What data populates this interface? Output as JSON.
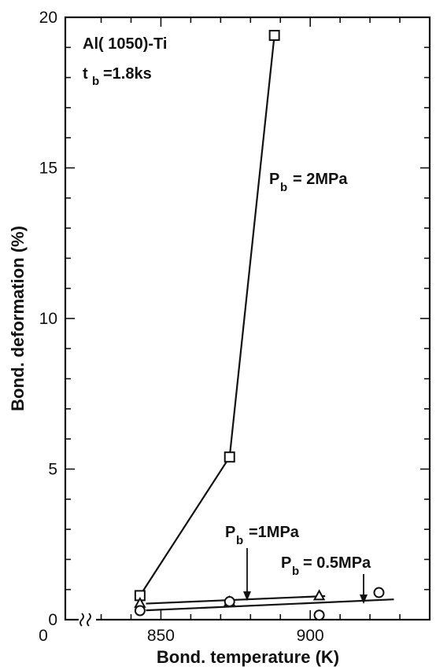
{
  "chart_data": {
    "type": "line",
    "xlabel": "Bond. temperature (K)",
    "ylabel": "Bond. deformation (%)",
    "xlim": [
      818,
      940
    ],
    "ylim": [
      0,
      20
    ],
    "x_ticks": [
      850,
      900
    ],
    "y_ticks": [
      0,
      5,
      10,
      15,
      20
    ],
    "x_axis_break": true,
    "grid": false,
    "annotations": {
      "material": "Al( 1050)-Ti",
      "time_main": "t",
      "time_sub": "b",
      "time_value": "=1.8ks"
    },
    "series": [
      {
        "name": "Pb = 2MPa",
        "label_main": "P",
        "label_sub": "b",
        "label_value": "= 2MPa",
        "marker": "square",
        "x": [
          843,
          873,
          888
        ],
        "y": [
          0.8,
          5.4,
          19.4
        ]
      },
      {
        "name": "Pb = 1MPa",
        "label_main": "P",
        "label_sub": "b",
        "label_value": "=1MPa",
        "marker": "triangle",
        "x": [
          843,
          873,
          903
        ],
        "y": [
          0.55,
          0.6,
          0.8
        ]
      },
      {
        "name": "Pb = 0.5MPa",
        "label_main": "P",
        "label_sub": "b",
        "label_value": "= 0.5MPa",
        "marker": "circle",
        "x": [
          843,
          873,
          903,
          923
        ],
        "y": [
          0.3,
          0.6,
          0.15,
          0.9
        ]
      }
    ]
  }
}
